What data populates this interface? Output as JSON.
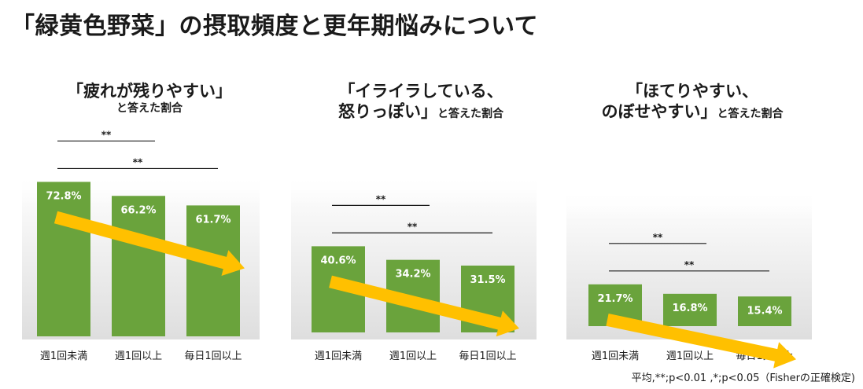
{
  "page": {
    "title": "「緑黄色野菜」の摂取頻度と更年期悩みについて",
    "footnote": "平均,**;p<0.01 ,*;p<0.05（Fisherの正確検定)"
  },
  "colors": {
    "bar": "#6aa33c",
    "arrow": "#ffc000",
    "label": "#ffffff",
    "text": "#1a1a1a"
  },
  "chart_data": [
    {
      "type": "bar",
      "title_lines": [
        "「疲れが残りやすい」"
      ],
      "title_suffix": "",
      "subtitle": "と答えた割合",
      "categories": [
        "週1回未満",
        "週1回以上",
        "毎日1回以上"
      ],
      "values": [
        72.8,
        66.2,
        61.7
      ],
      "value_labels": [
        "72.8%",
        "66.2%",
        "61.7%"
      ],
      "significance": [
        {
          "label": "**",
          "from": 0,
          "to": 1
        },
        {
          "label": "**",
          "from": 0,
          "to": 2
        }
      ],
      "trend_arrow": "decreasing"
    },
    {
      "type": "bar",
      "title_lines": [
        "「イライラしている、",
        "怒りっぽい」"
      ],
      "title_suffix": "と答えた割合",
      "subtitle": "",
      "categories": [
        "週1回未満",
        "週1回以上",
        "毎日1回以上"
      ],
      "values": [
        40.6,
        34.2,
        31.5
      ],
      "value_labels": [
        "40.6%",
        "34.2%",
        "31.5%"
      ],
      "significance": [
        {
          "label": "**",
          "from": 0,
          "to": 1
        },
        {
          "label": "**",
          "from": 0,
          "to": 2
        }
      ],
      "trend_arrow": "decreasing"
    },
    {
      "type": "bar",
      "title_lines": [
        "「ほてりやすい、",
        "のぼせやすい」"
      ],
      "title_suffix": "と答えた割合",
      "subtitle": "",
      "categories": [
        "週1回未満",
        "週1回以上",
        "毎日1回以上"
      ],
      "values": [
        21.7,
        16.8,
        15.4
      ],
      "value_labels": [
        "21.7%",
        "16.8%",
        "15.4%"
      ],
      "significance": [
        {
          "label": "**",
          "from": 0,
          "to": 1
        },
        {
          "label": "**",
          "from": 0,
          "to": 2
        }
      ],
      "trend_arrow": "decreasing"
    }
  ]
}
